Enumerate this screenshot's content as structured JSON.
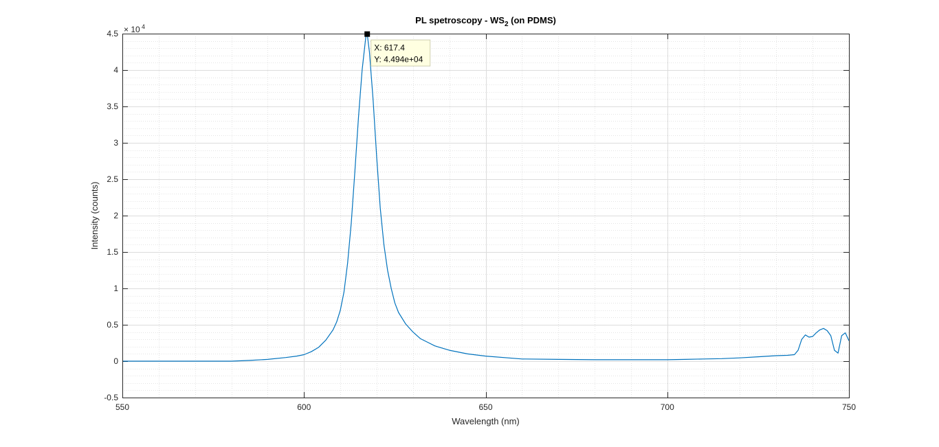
{
  "chart_data": {
    "type": "line",
    "title_main": "PL spetroscopy - WS",
    "title_sub": "2",
    "title_tail": " (on PDMS)",
    "xlabel": "Wavelength (nm)",
    "ylabel": "Intensity (counts)",
    "xlim": [
      550,
      750
    ],
    "ylim": [
      -5000,
      45000
    ],
    "xticks": [
      550,
      600,
      650,
      700,
      750
    ],
    "xtick_labels": [
      "550",
      "600",
      "650",
      "700",
      "750"
    ],
    "yticks": [
      -5000,
      0,
      5000,
      10000,
      15000,
      20000,
      25000,
      30000,
      35000,
      40000,
      45000
    ],
    "ytick_labels": [
      "-0.5",
      "0",
      "0.5",
      "1",
      "1.5",
      "2",
      "2.5",
      "3",
      "3.5",
      "4",
      "4.5"
    ],
    "y_exponent_base": "× 10",
    "y_exponent_power": "4",
    "grid": true,
    "minor_grid": true,
    "line_color": "#0072bd",
    "series": [
      {
        "x": [
          550,
          560,
          570,
          580,
          585,
          590,
          595,
          598,
          600,
          602,
          604,
          606,
          608,
          609,
          610,
          611,
          612,
          613,
          614,
          615,
          616,
          617,
          617.4,
          618,
          619,
          620,
          621,
          622,
          623,
          624,
          625,
          626,
          628,
          630,
          632,
          634,
          636,
          640,
          645,
          650,
          660,
          670,
          680,
          690,
          700,
          705,
          710,
          715,
          720,
          725,
          728,
          730,
          733,
          735,
          736,
          737,
          738,
          739,
          740,
          741,
          742,
          743,
          744,
          745,
          746,
          747,
          748,
          749,
          750
        ],
        "y": [
          0,
          0,
          0,
          0,
          100,
          250,
          500,
          700,
          900,
          1300,
          1900,
          2900,
          4300,
          5400,
          7000,
          9500,
          13500,
          19000,
          26000,
          33500,
          40000,
          44500,
          44940,
          42500,
          36000,
          28000,
          21000,
          16000,
          12500,
          10000,
          8000,
          6700,
          5100,
          4000,
          3100,
          2600,
          2100,
          1500,
          1000,
          700,
          300,
          250,
          200,
          200,
          200,
          250,
          300,
          350,
          450,
          600,
          700,
          750,
          800,
          900,
          1500,
          3000,
          3600,
          3300,
          3400,
          3900,
          4300,
          4500,
          4200,
          3500,
          1500,
          1100,
          3500,
          3900,
          2800
        ]
      }
    ],
    "datatip": {
      "x_text": "X: 617.4",
      "y_text": "Y: 4.494e+04",
      "x": 617.4,
      "y": 44940
    }
  }
}
